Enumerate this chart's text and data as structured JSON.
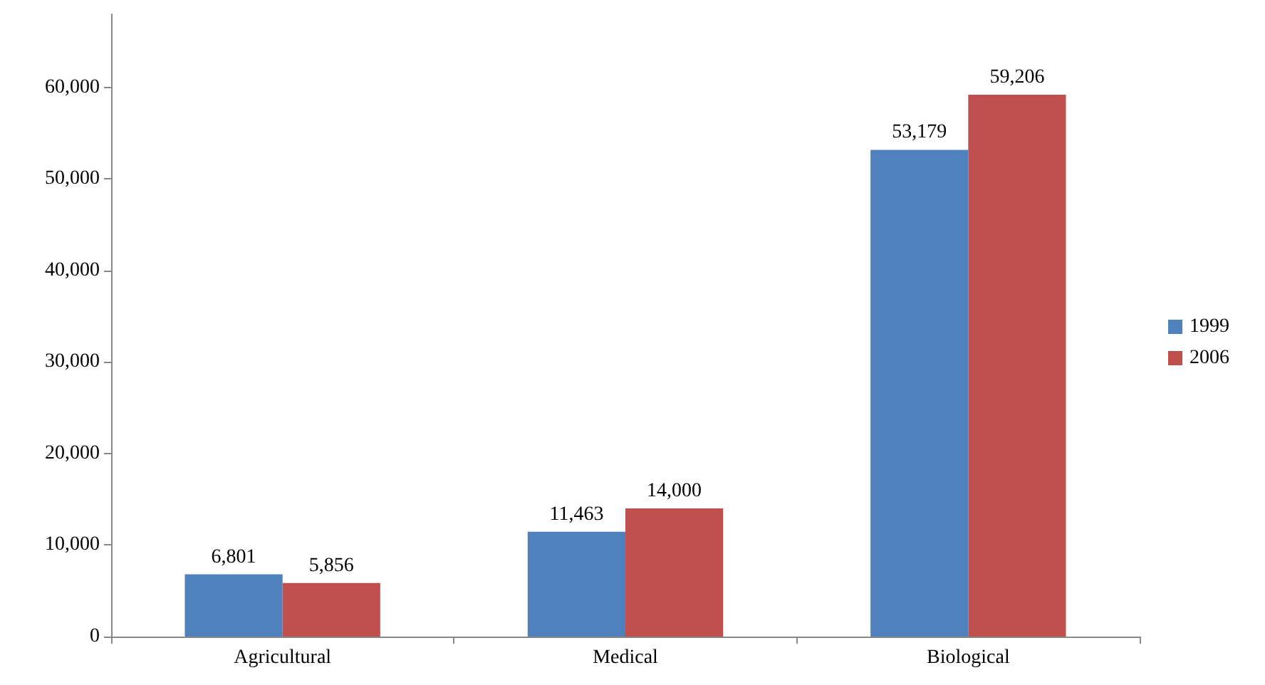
{
  "chart_data": {
    "type": "bar",
    "categories": [
      "Agricultural",
      "Medical",
      "Biological"
    ],
    "series": [
      {
        "name": "1999",
        "color": "#4f81bd",
        "values": [
          6801,
          11463,
          53179
        ],
        "value_labels": [
          "6,801",
          "11,463",
          "53,179"
        ]
      },
      {
        "name": "2006",
        "color": "#c0504d",
        "values": [
          5856,
          14000,
          59206
        ],
        "value_labels": [
          "5,856",
          "14,000",
          "59,206"
        ]
      }
    ],
    "ylim": [
      0,
      68000
    ],
    "yticks": [
      0,
      {
        "value": 10000,
        "label": "10,000"
      },
      {
        "value": 20000,
        "label": "20,000"
      },
      {
        "value": 30000,
        "label": "30,000"
      },
      {
        "value": 40000,
        "label": "40,000"
      },
      {
        "value": 50000,
        "label": "50,000"
      },
      {
        "value": 60000,
        "label": "60,000"
      }
    ],
    "grid": false,
    "legend": "right"
  }
}
